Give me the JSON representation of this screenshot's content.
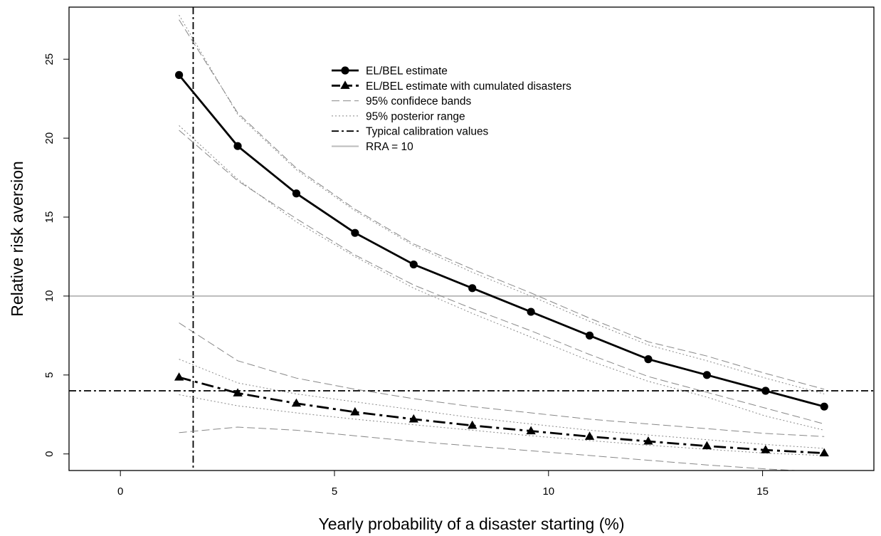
{
  "chart_data": {
    "type": "line",
    "xlabel": "Yearly probability of a disaster starting (%)",
    "ylabel": "Relative risk aversion",
    "xlim": [
      -1.2,
      17.6
    ],
    "ylim": [
      -1.05,
      28.3
    ],
    "x_ticks": [
      "0",
      "5",
      "10",
      "15"
    ],
    "y_ticks": [
      "0",
      "5",
      "10",
      "15",
      "20",
      "25"
    ],
    "grid": false,
    "legend_position": "top-center",
    "x": [
      1.37,
      2.74,
      4.11,
      5.48,
      6.85,
      8.22,
      9.59,
      10.96,
      12.33,
      13.7,
      15.07,
      16.44
    ],
    "series": [
      {
        "name": "EL/BEL estimate",
        "style": "solid-circle",
        "color": "#000000",
        "values": [
          24.0,
          19.5,
          16.5,
          14.0,
          12.0,
          10.5,
          9.0,
          7.5,
          6.0,
          5.0,
          4.0,
          3.0
        ]
      },
      {
        "name": "EL/BEL estimate with cumulated disasters",
        "style": "dash-triangle",
        "color": "#000000",
        "values": [
          4.85,
          3.85,
          3.2,
          2.65,
          2.2,
          1.8,
          1.45,
          1.1,
          0.8,
          0.5,
          0.25,
          0.05
        ]
      },
      {
        "name": "95% confidece bands",
        "style": "longdash",
        "color": "#888888",
        "lines": [
          [
            27.5,
            21.6,
            18.1,
            15.5,
            13.3,
            11.7,
            10.2,
            8.6,
            7.1,
            6.2,
            5.1,
            4.1
          ],
          [
            20.5,
            17.3,
            14.9,
            12.6,
            10.7,
            9.2,
            7.8,
            6.3,
            4.9,
            3.9,
            2.9,
            1.9
          ],
          [
            8.3,
            5.9,
            4.8,
            4.1,
            3.5,
            3.0,
            2.6,
            2.2,
            1.9,
            1.6,
            1.3,
            1.1
          ],
          [
            1.35,
            1.7,
            1.5,
            1.15,
            0.8,
            0.5,
            0.2,
            -0.1,
            -0.4,
            -0.7,
            -0.95,
            -1.15
          ]
        ]
      },
      {
        "name": "95% posterior range",
        "style": "dotted",
        "color": "#888888",
        "lines": [
          [
            27.8,
            21.5,
            18.0,
            15.4,
            13.2,
            11.5,
            10.0,
            8.4,
            6.9,
            5.9,
            4.8,
            3.8
          ],
          [
            20.8,
            17.4,
            14.7,
            12.5,
            10.5,
            8.9,
            7.4,
            5.9,
            4.6,
            3.6,
            2.4,
            1.5
          ],
          [
            6.0,
            4.5,
            3.8,
            3.3,
            2.8,
            2.3,
            1.9,
            1.5,
            1.2,
            0.9,
            0.6,
            0.35
          ],
          [
            3.75,
            3.05,
            2.6,
            2.2,
            1.85,
            1.5,
            1.15,
            0.85,
            0.55,
            0.3,
            0.05,
            -0.1
          ]
        ]
      },
      {
        "name": "Typical calibration values",
        "style": "dotdash",
        "color": "#000000",
        "vline_x": 1.7,
        "hline_y": 4.0
      },
      {
        "name": "RRA = 10",
        "style": "solid",
        "color": "#bbbbbb",
        "hline_y": 10.0
      }
    ]
  }
}
